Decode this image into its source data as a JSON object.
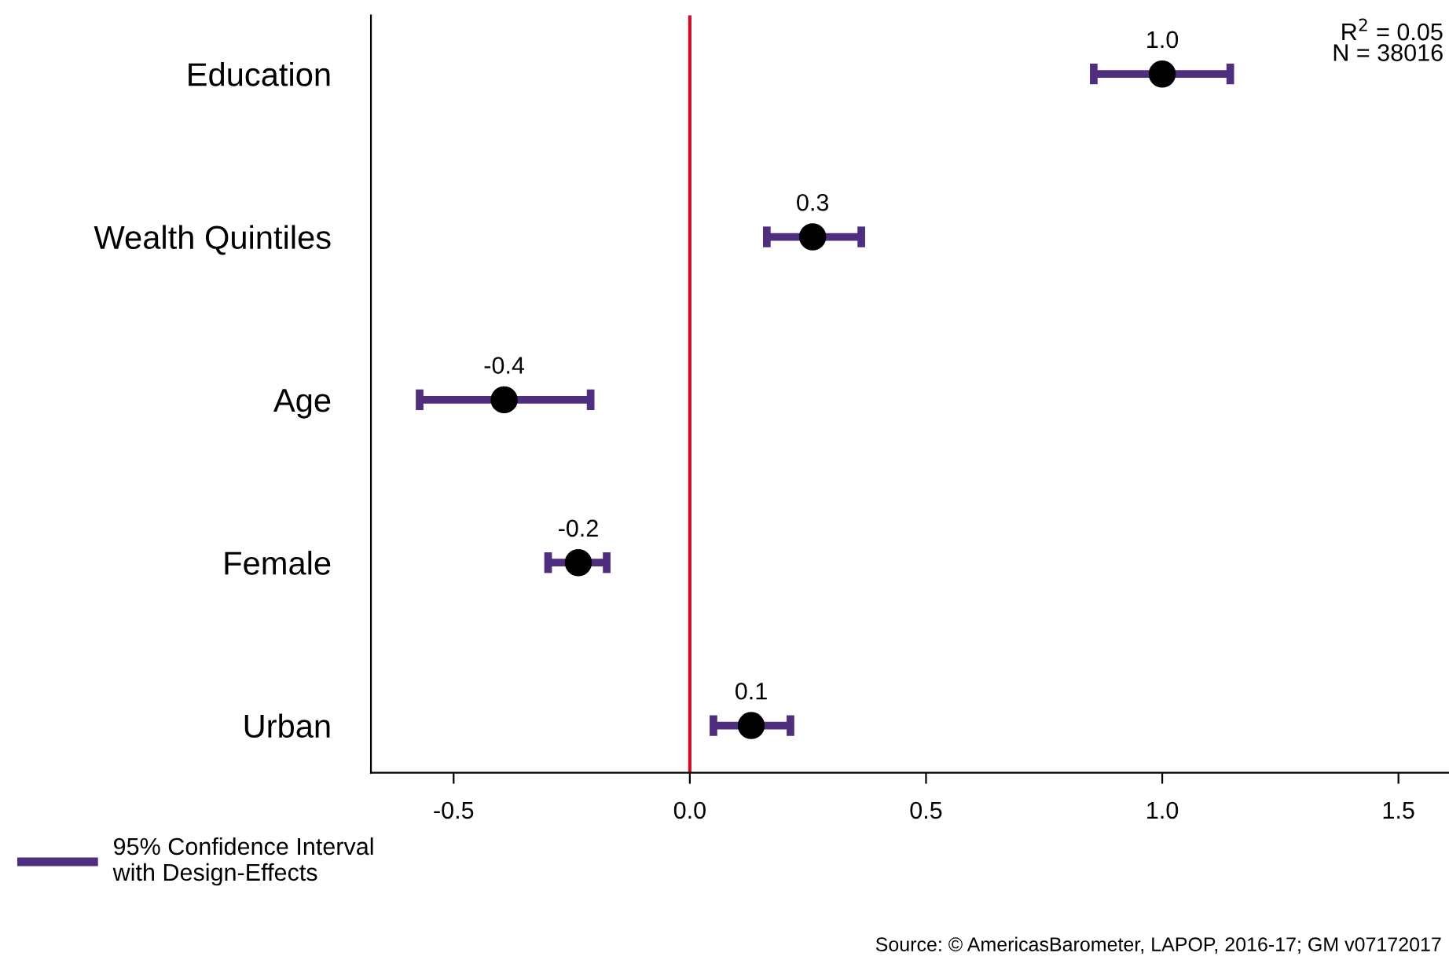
{
  "chart_data": {
    "type": "scatter",
    "orientation": "horizontal",
    "categories": [
      "Education",
      "Wealth Quintiles",
      "Age",
      "Female",
      "Urban"
    ],
    "series": [
      {
        "name": "95% Confidence Interval\nwith Design-Effects",
        "color": "#4f2d7f",
        "colors": [
          "#000000",
          "#000000",
          "#000000",
          "#000000",
          "#000000"
        ],
        "values": [
          1.0,
          0.26,
          -0.393,
          -0.236,
          0.13
        ],
        "errors": [
          [
            0.855,
            1.144
          ],
          [
            0.163,
            0.363
          ],
          [
            -0.572,
            -0.21
          ],
          [
            -0.3,
            -0.176
          ],
          [
            0.05,
            0.213
          ]
        ],
        "value_labels": [
          "1.0",
          "0.3",
          "-0.4",
          "-0.2",
          "0.1"
        ]
      }
    ],
    "xlim": [
      -0.675,
      1.607
    ],
    "xticks": [
      -0.5,
      {
        "value": 0,
        "label": "0.0"
      },
      0.5,
      {
        "value": 1,
        "label": "1.0"
      },
      1.5
    ],
    "marker": "circle",
    "grid": false,
    "legend": "bottom left",
    "ref_lines": [
      {
        "axis": "x",
        "value": 0,
        "color": "#c8102e"
      }
    ],
    "annotations": [
      "R$^{2}$ = 0.05\nN = 38016",
      "Source: © AmericasBarometer, LAPOP, 2016-17; GM v07172017"
    ]
  }
}
